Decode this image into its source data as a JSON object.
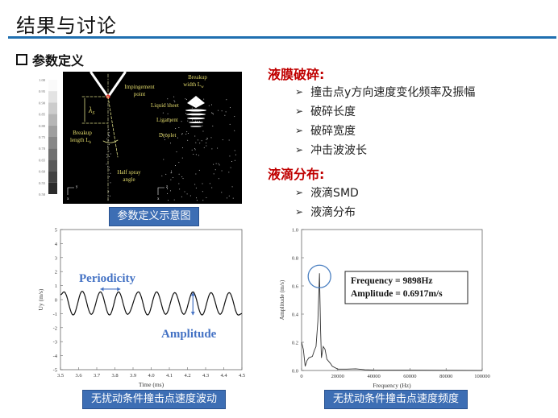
{
  "slide": {
    "title": "结果与讨论",
    "section": "参数定义",
    "accent": "#1f6fb0",
    "heading_color": "#c00000",
    "right": {
      "groups": [
        {
          "heading": "液膜破碎:",
          "items": [
            "撞击点y方向速度变化频率及振幅",
            "破碎长度",
            "破碎宽度",
            "冲击波波长"
          ]
        },
        {
          "heading": "液滴分布:",
          "items": [
            "液滴SMD",
            "液滴分布"
          ]
        }
      ]
    },
    "figure": {
      "caption": "参数定义示意图",
      "colorbar_labels": [
        "1.00",
        "0.95",
        "0.90",
        "0.85",
        "0.80",
        "0.75",
        "0.70",
        "0.65",
        "0.60",
        "0.55",
        "0.50"
      ],
      "labels": {
        "impingement": [
          "Impingement",
          "point"
        ],
        "breakup_width": [
          "Breakup",
          "width L",
          "w"
        ],
        "liquid_sheet": "Liquid sheet",
        "ligament": "Ligament",
        "droplet": "Droplet",
        "breakup_length": [
          "Breakup",
          "length L",
          "b"
        ],
        "half_spray": [
          "Half spray",
          "angle"
        ],
        "lambda": "λ",
        "lambda_sub": "S",
        "axis_y": "y",
        "axis_z": "z",
        "axis_x": "x"
      }
    }
  },
  "chart_data": [
    {
      "type": "line",
      "caption": "无扰动条件撞击点速度波动",
      "xlabel": "Time (ms)",
      "ylabel": "Uy (m/s)",
      "xlim": [
        3.5,
        4.5
      ],
      "ylim": [
        -5,
        5
      ],
      "xticks": [
        "3.5",
        "3.6",
        "3.7",
        "3.8",
        "3.9",
        "4.0",
        "4.1",
        "4.2",
        "4.3",
        "4.4",
        "4.5"
      ],
      "yticks": [
        "-5",
        "-4",
        "-3",
        "-2",
        "-1",
        "0",
        "1",
        "2",
        "3",
        "4",
        "5"
      ],
      "annotations": {
        "periodicity": "Periodicity",
        "amplitude": "Amplitude"
      },
      "extrema_x": [
        3.5,
        3.52,
        3.57,
        3.62,
        3.67,
        3.72,
        3.77,
        3.82,
        3.87,
        3.93,
        3.98,
        4.03,
        4.08,
        4.13,
        4.18,
        4.23,
        4.28,
        4.33,
        4.38,
        4.43,
        4.48,
        4.5
      ],
      "extrema_y": [
        0.35,
        0.55,
        -1.1,
        0.6,
        -1.05,
        0.55,
        -1.1,
        0.55,
        -1.05,
        0.55,
        -1.1,
        0.55,
        -1.05,
        0.5,
        -1.05,
        0.55,
        -1.1,
        0.5,
        -1.05,
        0.5,
        -1.1,
        -1.0
      ],
      "line_color": "#111111",
      "annotation_color": "#4472c4"
    },
    {
      "type": "line",
      "caption": "无扰动条件撞击点速度频度",
      "xlabel": "Frequency (Hz)",
      "ylabel": "Amplitude (m/s)",
      "xlim": [
        0,
        100000
      ],
      "ylim": [
        0,
        1.0
      ],
      "xticks": [
        "0",
        "20000",
        "40000",
        "60000",
        "80000",
        "100000"
      ],
      "yticks": [
        "0.0",
        "0.2",
        "0.4",
        "0.6",
        "0.8",
        "1.0"
      ],
      "x": [
        0,
        1000,
        2000,
        3000,
        4000,
        6000,
        7000,
        8000,
        9000,
        9898,
        10500,
        11000,
        12000,
        13000,
        14000,
        16000,
        17000,
        20000,
        25000,
        30000,
        35000,
        40000,
        60000,
        100000
      ],
      "y": [
        0.2,
        0.15,
        0.03,
        0.07,
        0.09,
        0.1,
        0.14,
        0.17,
        0.35,
        0.69,
        0.3,
        0.09,
        0.17,
        0.15,
        0.08,
        0.05,
        0.03,
        0.01,
        0.01,
        0.012,
        0.005,
        0.003,
        0.002,
        0.0
      ],
      "annotation": {
        "line1": "Frequency = 9898Hz",
        "line2": "Amplitude = 0.6917m/s"
      },
      "peak_highlight": {
        "x": 9898,
        "y": 0.69
      },
      "line_color": "#333333",
      "circle_color": "#4a7fc1"
    }
  ]
}
